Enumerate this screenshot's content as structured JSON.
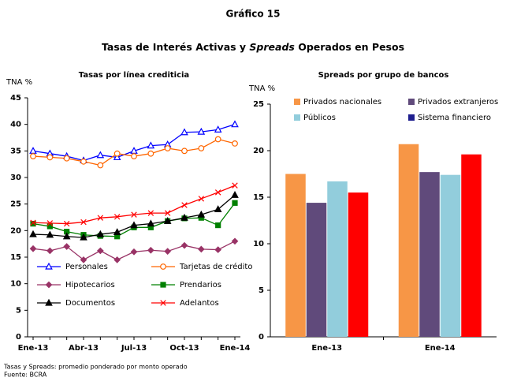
{
  "heading": {
    "figure": "Gráfico 15",
    "title": [
      "Tasas de Interés Activas y ",
      "Spreads",
      " Operados en Pesos"
    ]
  },
  "chart_data": [
    {
      "type": "line",
      "title": "Tasas por línea crediticia",
      "y_label": "TNA %",
      "categories": [
        "Ene-13",
        null,
        null,
        "Abr-13",
        null,
        null,
        "Jul-13",
        null,
        null,
        "Oct-13",
        null,
        null,
        "Ene-14"
      ],
      "ylim": [
        0,
        45
      ],
      "yticks": [
        0,
        5,
        10,
        15,
        20,
        25,
        30,
        35,
        40,
        45
      ],
      "grid": false,
      "legend": "bottom",
      "series": [
        {
          "name": "Personales",
          "color": "#0000ff",
          "marker": "triangle-open",
          "values": [
            35,
            34.5,
            34,
            33.2,
            34.2,
            33.8,
            35,
            36,
            36.2,
            38.5,
            38.6,
            39,
            40
          ]
        },
        {
          "name": "Tarjetas de crédito",
          "color": "#ff6600",
          "marker": "circle-open",
          "values": [
            34,
            33.8,
            33.6,
            33,
            32.3,
            34.5,
            34,
            34.5,
            35.5,
            35,
            35.5,
            37.2,
            36.4
          ]
        },
        {
          "name": "Hipotecarios",
          "color": "#993366",
          "marker": "diamond",
          "values": [
            16.6,
            16.2,
            17,
            14.5,
            16.2,
            14.5,
            16,
            16.3,
            16.1,
            17.2,
            16.5,
            16.4,
            18
          ]
        },
        {
          "name": "Prendarios",
          "color": "#008000",
          "marker": "square",
          "values": [
            21.3,
            20.8,
            19.8,
            19.2,
            19,
            18.9,
            20.6,
            20.6,
            21.8,
            22.3,
            22.4,
            21,
            25.2
          ]
        },
        {
          "name": "Documentos",
          "color": "#000000",
          "marker": "triangle",
          "values": [
            19.3,
            19.2,
            18.9,
            18.7,
            19.3,
            19.7,
            21,
            21.3,
            21.8,
            22.4,
            23,
            24,
            26.7
          ]
        },
        {
          "name": "Adelantos",
          "color": "#ff0000",
          "marker": "x",
          "values": [
            21.5,
            21.4,
            21.3,
            21.6,
            22.4,
            22.6,
            23,
            23.3,
            23.3,
            24.8,
            26,
            27.2,
            28.5
          ]
        }
      ]
    },
    {
      "type": "bar",
      "title": "Spreads por grupo de bancos",
      "y_label": "TNA %",
      "categories": [
        "Ene-13",
        "Ene-14"
      ],
      "ylim": [
        0,
        25
      ],
      "yticks": [
        0,
        5,
        10,
        15,
        20,
        25
      ],
      "grid": false,
      "legend": "top",
      "series": [
        {
          "name": "Privados nacionales",
          "color": "#f79646",
          "values": [
            17.5,
            20.7
          ]
        },
        {
          "name": "Privados extranjeros",
          "color": "#604a7b",
          "values": [
            14.4,
            17.7
          ]
        },
        {
          "name": "Públicos",
          "color": "#92cddc",
          "values": [
            16.7,
            17.4
          ]
        },
        {
          "name": "Sistema financiero",
          "color": "#ff0000",
          "legend_color": "#1f1f8f",
          "values": [
            15.5,
            19.6
          ]
        }
      ]
    }
  ],
  "notes": [
    "Tasas y Spreads: promedio ponderado por monto operado",
    "Fuente: BCRA"
  ]
}
